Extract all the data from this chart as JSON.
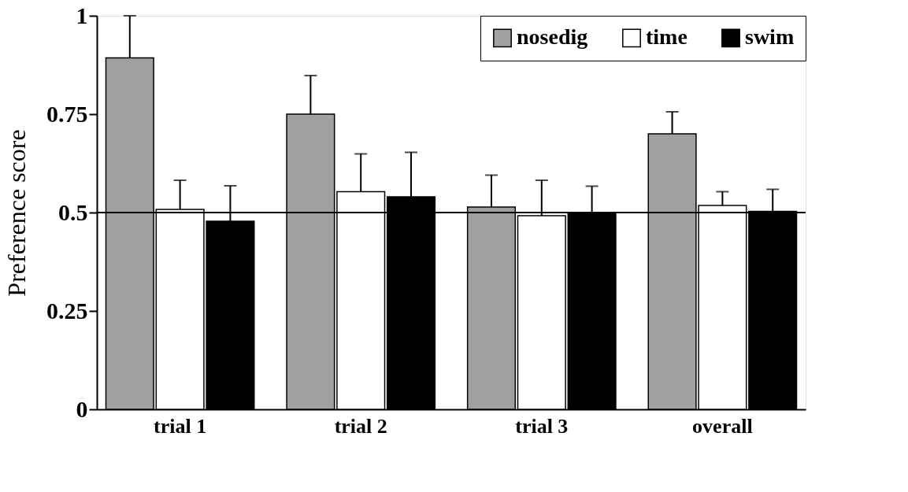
{
  "chart_data": {
    "type": "bar",
    "ylabel": "Preference score",
    "categories": [
      "trial  1",
      "trial  2",
      "trial  3",
      "overall"
    ],
    "series": [
      {
        "name": "nosedig",
        "color": "#a0a0a0",
        "values": [
          0.893,
          0.75,
          0.514,
          0.7
        ],
        "errors": [
          [
            0.893,
            1.0
          ],
          [
            0.75,
            0.848
          ],
          [
            0.514,
            0.595
          ],
          [
            0.7,
            0.756
          ]
        ]
      },
      {
        "name": "time",
        "color": "#ffffff",
        "values": [
          0.508,
          0.553,
          0.492,
          0.518
        ],
        "errors": [
          [
            0.508,
            0.582
          ],
          [
            0.553,
            0.649
          ],
          [
            0.492,
            0.582
          ],
          [
            0.518,
            0.553
          ]
        ]
      },
      {
        "name": "swim",
        "color": "#000000",
        "values": [
          0.478,
          0.54,
          0.5,
          0.503
        ],
        "errors": [
          [
            0.478,
            0.568
          ],
          [
            0.54,
            0.653
          ],
          [
            0.5,
            0.567
          ],
          [
            0.503,
            0.559
          ]
        ]
      }
    ],
    "ylim": [
      0,
      1
    ],
    "yticks": [
      0,
      0.25,
      0.5,
      0.75,
      1
    ],
    "ref_lines": [
      {
        "axis": "y",
        "value": 0.5,
        "color": "#000000"
      }
    ],
    "legend": "top right",
    "grid": false
  }
}
